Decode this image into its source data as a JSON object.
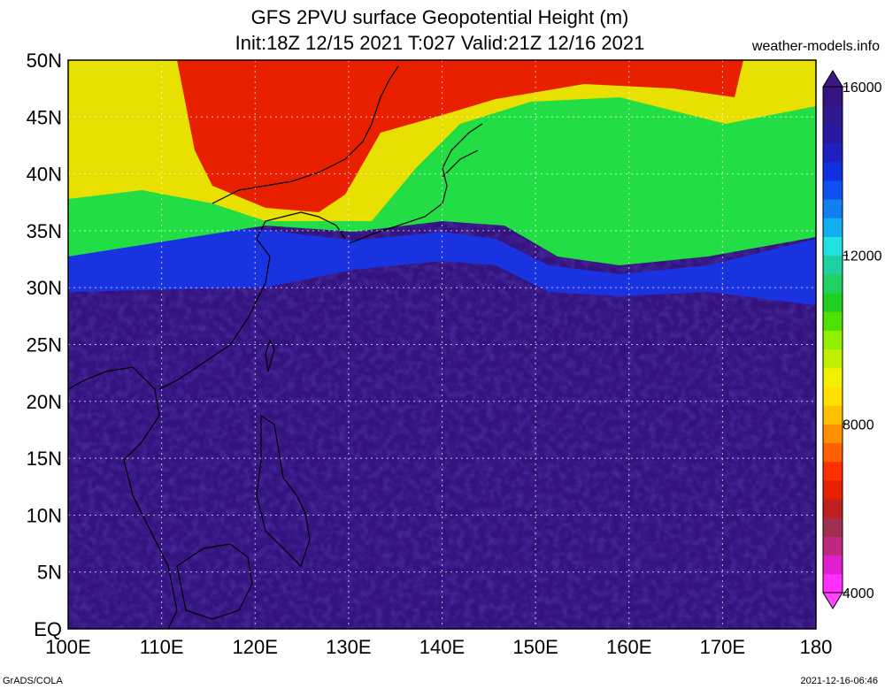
{
  "header": {
    "title_line1": "GFS 2PVU surface Geopotential Height (m)",
    "title_line2": "Init:18Z 12/15 2021 T:027 Valid:21Z 12/16 2021",
    "site": "weather-models.info"
  },
  "footer": {
    "left": "GrADS/COLA",
    "right": "2021-12-16-06:46"
  },
  "map": {
    "lat_labels": [
      "50N",
      "45N",
      "40N",
      "35N",
      "30N",
      "25N",
      "20N",
      "15N",
      "10N",
      "5N",
      "EQ"
    ],
    "lon_labels": [
      "100E",
      "110E",
      "120E",
      "130E",
      "140E",
      "150E",
      "160E",
      "170E",
      "180"
    ],
    "colors": {
      "background_field": "#35137f",
      "blue_band": "#1a33e0",
      "green": "#22dd44",
      "yellow": "#e8e000",
      "red": "#e82000",
      "coast": "#000000"
    }
  },
  "colorbar": {
    "labels": [
      "16000",
      "12000",
      "8000",
      "4000"
    ],
    "top_arrow_color": "#3a1a80",
    "bottom_arrow_color": "#ff44ff",
    "colors": [
      "#ff30ff",
      "#e020d0",
      "#c02880",
      "#a03050",
      "#c02020",
      "#e82000",
      "#ff3000",
      "#ff6000",
      "#ff9000",
      "#ffc000",
      "#ffe000",
      "#f0f000",
      "#c0f000",
      "#90f000",
      "#50e000",
      "#20d020",
      "#20d060",
      "#20d0a0",
      "#20e0e0",
      "#10b0f0",
      "#1080f0",
      "#1050f0",
      "#1030e0",
      "#2020c0",
      "#2818a0",
      "#301890",
      "#351480"
    ]
  }
}
